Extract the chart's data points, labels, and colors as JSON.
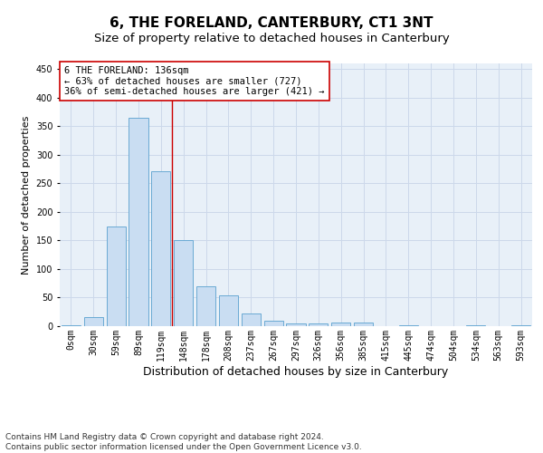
{
  "title": "6, THE FORELAND, CANTERBURY, CT1 3NT",
  "subtitle": "Size of property relative to detached houses in Canterbury",
  "xlabel": "Distribution of detached houses by size in Canterbury",
  "ylabel": "Number of detached properties",
  "categories": [
    "0sqm",
    "30sqm",
    "59sqm",
    "89sqm",
    "119sqm",
    "148sqm",
    "178sqm",
    "208sqm",
    "237sqm",
    "267sqm",
    "297sqm",
    "326sqm",
    "356sqm",
    "385sqm",
    "415sqm",
    "445sqm",
    "474sqm",
    "504sqm",
    "534sqm",
    "563sqm",
    "593sqm"
  ],
  "values": [
    2,
    16,
    175,
    365,
    272,
    150,
    70,
    54,
    22,
    9,
    5,
    5,
    6,
    6,
    0,
    2,
    0,
    0,
    2,
    0,
    2
  ],
  "bar_color": "#c9ddf2",
  "bar_edge_color": "#6aaad4",
  "grid_color": "#ccd8ea",
  "background_color": "#e8f0f8",
  "vline_x": 4.5,
  "vline_color": "#cc0000",
  "annotation_text": "6 THE FORELAND: 136sqm\n← 63% of detached houses are smaller (727)\n36% of semi-detached houses are larger (421) →",
  "annotation_box_color": "#ffffff",
  "annotation_box_edge": "#cc0000",
  "ylim": [
    0,
    460
  ],
  "yticks": [
    0,
    50,
    100,
    150,
    200,
    250,
    300,
    350,
    400,
    450
  ],
  "footer_text": "Contains HM Land Registry data © Crown copyright and database right 2024.\nContains public sector information licensed under the Open Government Licence v3.0.",
  "title_fontsize": 11,
  "subtitle_fontsize": 9.5,
  "xlabel_fontsize": 9,
  "ylabel_fontsize": 8,
  "tick_fontsize": 7,
  "annotation_fontsize": 7.5,
  "footer_fontsize": 6.5
}
